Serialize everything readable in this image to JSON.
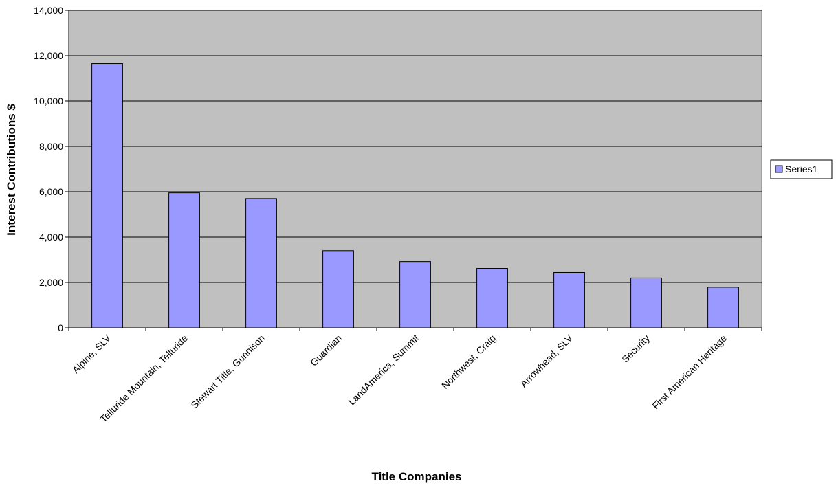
{
  "chart_data": {
    "type": "bar",
    "title": "",
    "xlabel": "Title Companies",
    "ylabel": "Interest Contributions $",
    "categories": [
      "Alpine, SLV",
      "Telluride Mountain, Telluride",
      "Stewart Title, Gunnison",
      "Guardian",
      "LandAmerica, Summit",
      "Northwest, Craig",
      "Arrowhead, SLV",
      "Security",
      "First American Heritage"
    ],
    "series": [
      {
        "name": "Series1",
        "values": [
          11650,
          5950,
          5700,
          3400,
          2920,
          2620,
          2440,
          2200,
          1790
        ]
      }
    ],
    "ylim": [
      0,
      14000
    ],
    "yticks": [
      0,
      2000,
      4000,
      6000,
      8000,
      10000,
      12000,
      14000
    ],
    "ytick_labels": [
      "0",
      "2,000",
      "4,000",
      "6,000",
      "8,000",
      "10,000",
      "12,000",
      "14,000"
    ],
    "grid": true,
    "legend": "right",
    "colors": {
      "plot_background": "#c0c0c0",
      "bar_fill": "#9999ff",
      "bar_stroke": "#000000",
      "gridline": "#000000"
    }
  }
}
